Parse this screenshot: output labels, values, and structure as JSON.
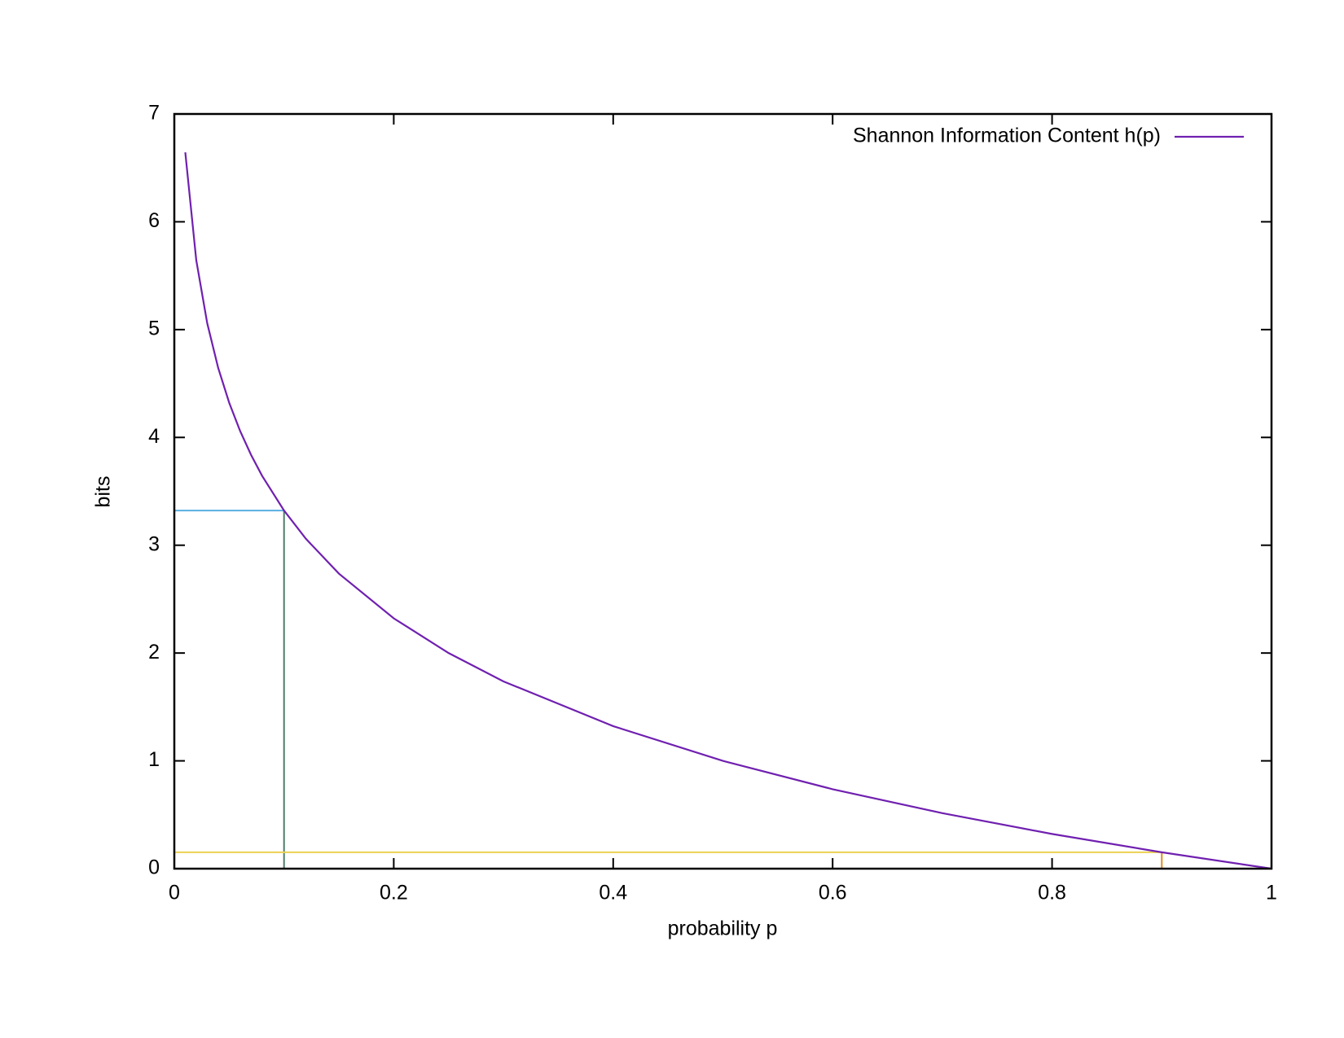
{
  "chart_data": {
    "type": "line",
    "xlabel": "probability p",
    "ylabel": "bits",
    "xlim": [
      0,
      1
    ],
    "ylim": [
      0,
      7
    ],
    "xticks": [
      0,
      0.2,
      0.4,
      0.6,
      0.8,
      1
    ],
    "yticks": [
      0,
      1,
      2,
      3,
      4,
      5,
      6,
      7
    ],
    "grid": false,
    "legend": "top-right",
    "series": [
      {
        "name": "Shannon Information Content h(p)",
        "color": "#7020b0",
        "x": [
          0.01,
          0.02,
          0.03,
          0.04,
          0.05,
          0.06,
          0.07,
          0.08,
          0.1,
          0.12,
          0.15,
          0.2,
          0.25,
          0.3,
          0.4,
          0.5,
          0.6,
          0.7,
          0.8,
          0.9,
          1.0
        ],
        "values": [
          6.644,
          5.644,
          5.059,
          4.644,
          4.322,
          4.059,
          3.837,
          3.644,
          3.322,
          3.059,
          2.737,
          2.322,
          2.0,
          1.737,
          1.322,
          1.0,
          0.737,
          0.515,
          0.322,
          0.152,
          0
        ]
      }
    ],
    "reference_lines": [
      {
        "color": "#5aaee0",
        "x": [
          0,
          0.1
        ],
        "values": [
          3.322,
          3.322
        ]
      },
      {
        "color": "#4f7d6c",
        "x": [
          0.1,
          0.1
        ],
        "values": [
          0,
          3.322
        ]
      },
      {
        "color": "#ecd050",
        "x": [
          0,
          0.9
        ],
        "values": [
          0.152,
          0.152
        ]
      },
      {
        "color": "#e08a20",
        "x": [
          0.9,
          0.9
        ],
        "values": [
          0,
          0.152
        ]
      }
    ]
  }
}
